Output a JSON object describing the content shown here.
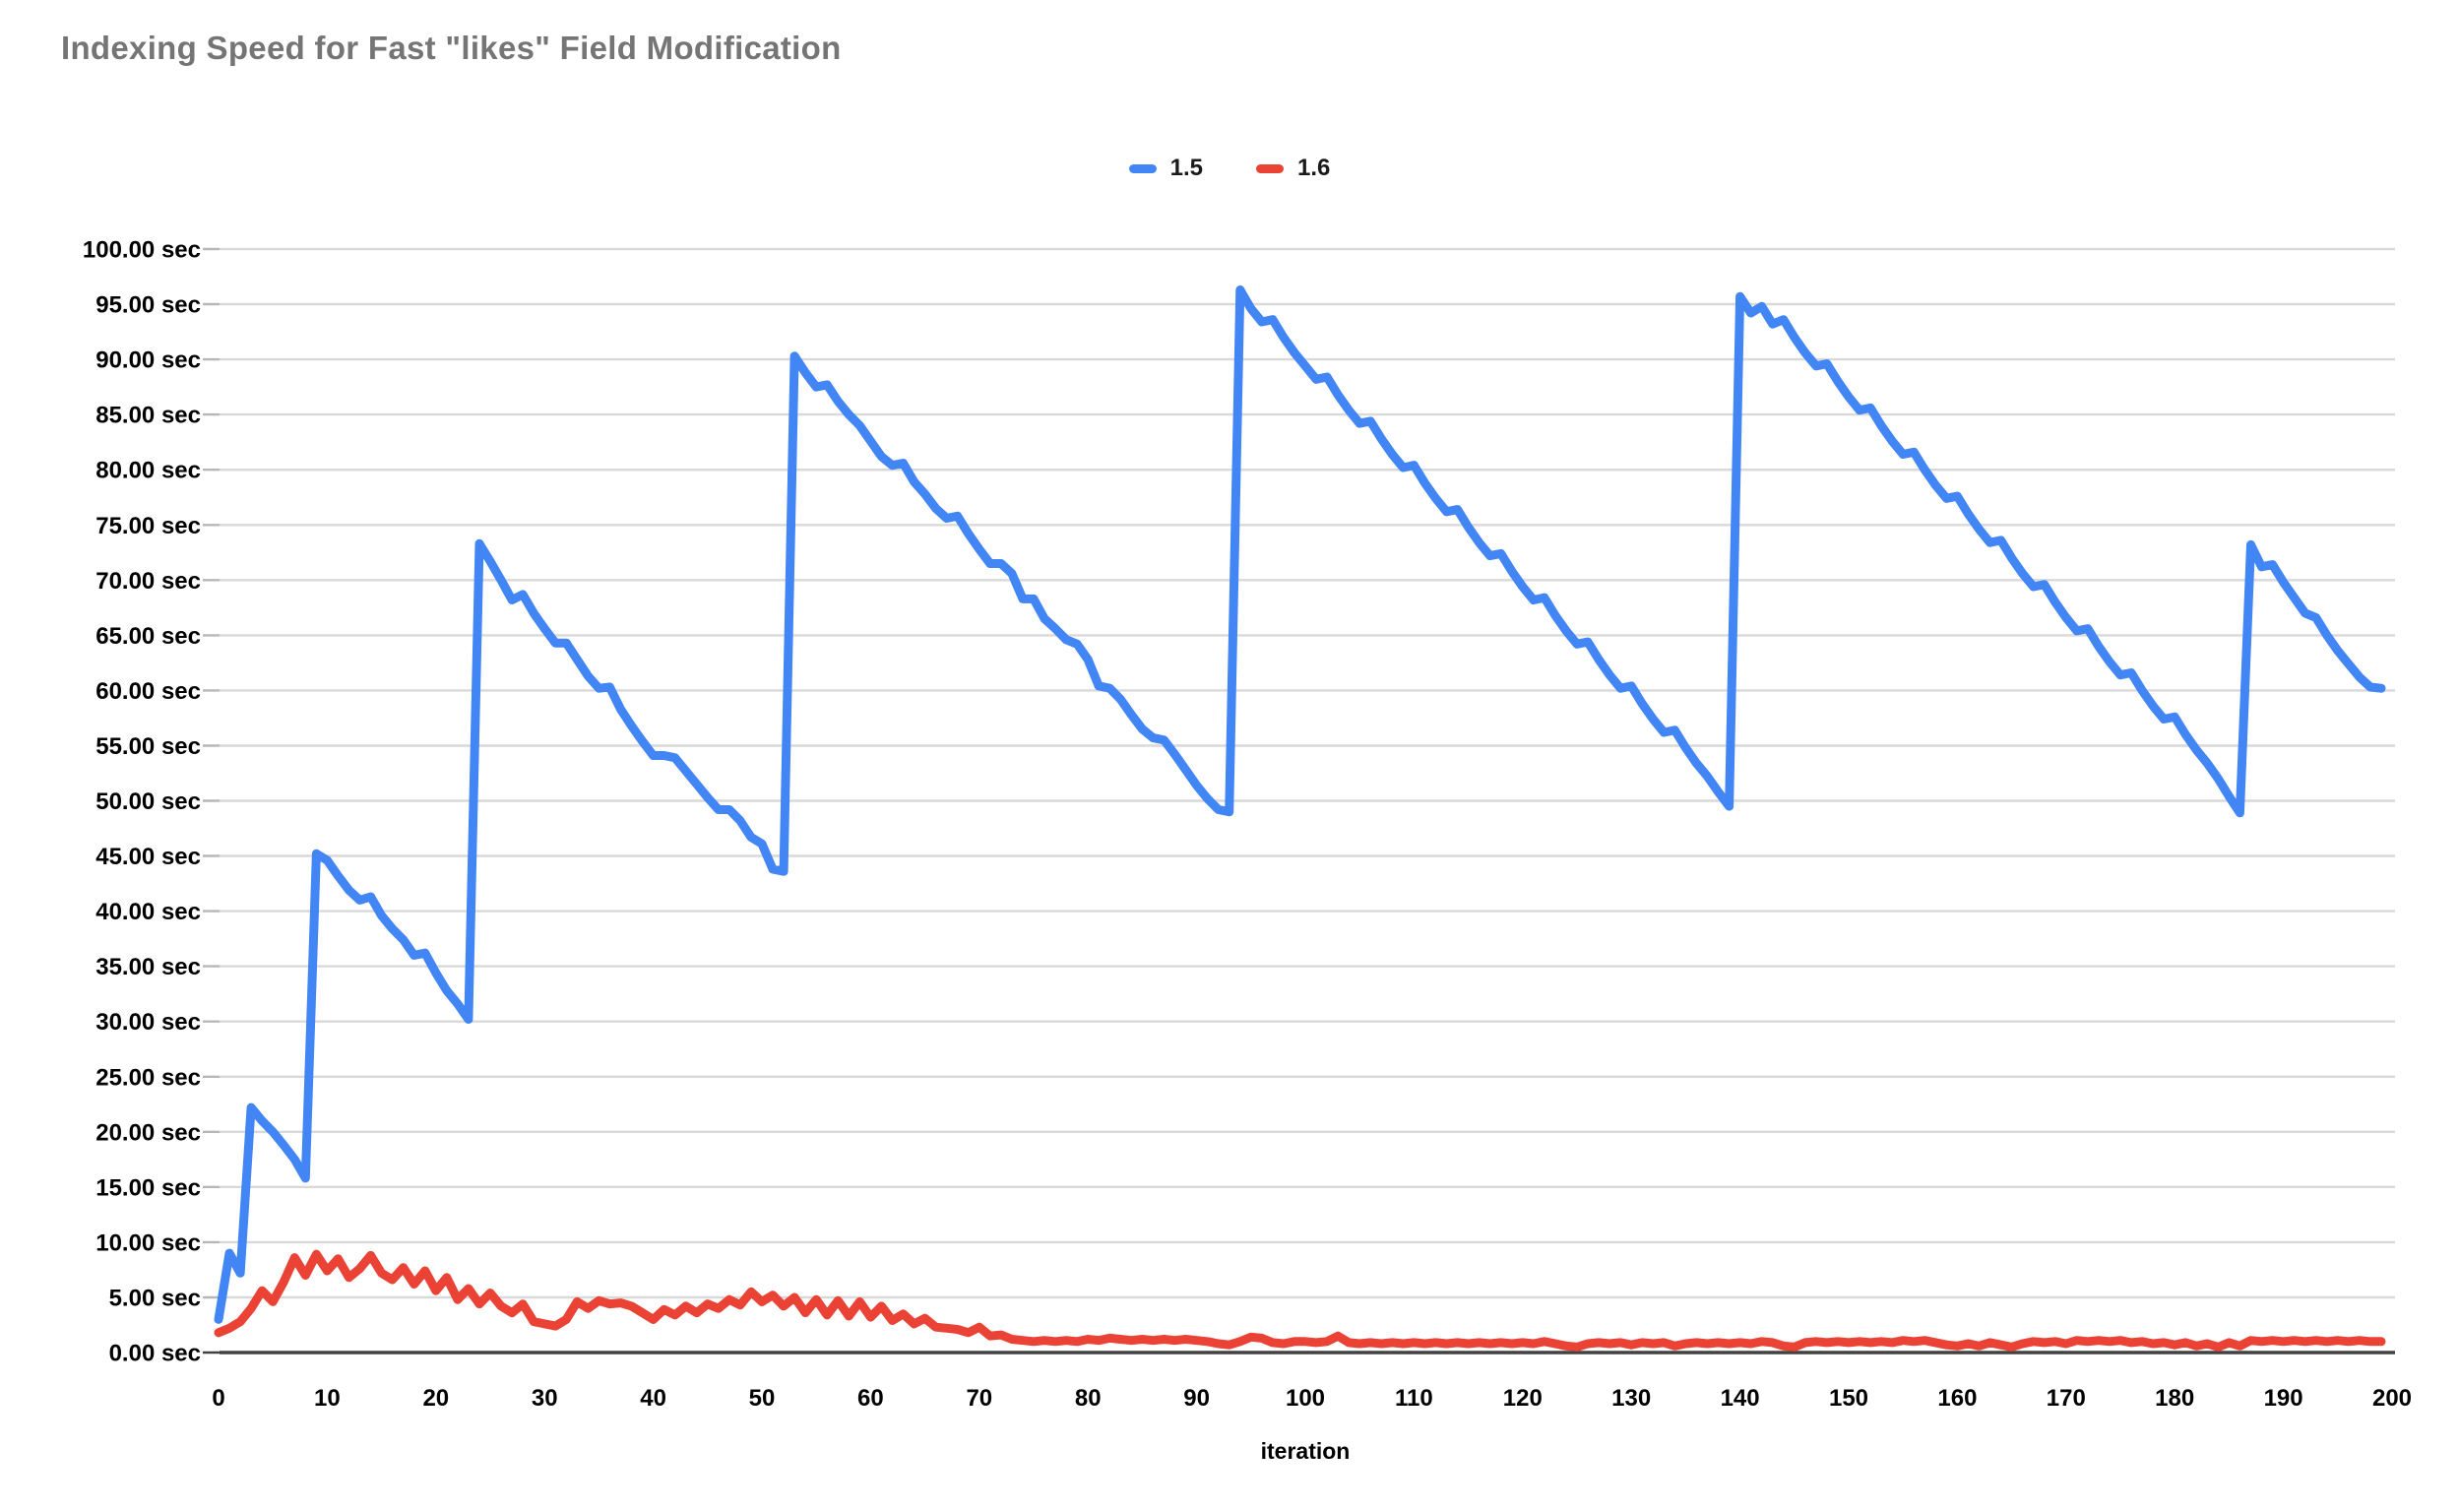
{
  "title": {
    "text": "Indexing Speed for Fast \"likes\" Field Modification",
    "color": "#757575"
  },
  "legend": {
    "position": "top",
    "items": [
      {
        "label": "1.5",
        "color": "#4285F4"
      },
      {
        "label": "1.6",
        "color": "#EA4335"
      }
    ]
  },
  "axes": {
    "x_title": "iteration",
    "y_unit": "sec"
  },
  "chart_data": {
    "type": "line",
    "title": "Indexing Speed for Fast \"likes\" Field Modification",
    "xlabel": "iteration",
    "ylabel": "",
    "xlim": [
      0,
      200
    ],
    "ylim": [
      0,
      100
    ],
    "grid": true,
    "legend_position": "top",
    "x_ticks": [
      0,
      10,
      20,
      30,
      40,
      50,
      60,
      70,
      80,
      90,
      100,
      110,
      120,
      130,
      140,
      150,
      160,
      170,
      180,
      190,
      200
    ],
    "x_tick_labels": [
      "0",
      "10",
      "20",
      "30",
      "40",
      "50",
      "60",
      "70",
      "80",
      "90",
      "100",
      "110",
      "120",
      "130",
      "140",
      "150",
      "160",
      "170",
      "180",
      "190",
      "200"
    ],
    "y_ticks": [
      0,
      5,
      10,
      15,
      20,
      25,
      30,
      35,
      40,
      45,
      50,
      55,
      60,
      65,
      70,
      75,
      80,
      85,
      90,
      95,
      100
    ],
    "y_tick_labels": [
      "0.00 sec",
      "5.00 sec",
      "10.00 sec",
      "15.00 sec",
      "20.00 sec",
      "25.00 sec",
      "30.00 sec",
      "35.00 sec",
      "40.00 sec",
      "45.00 sec",
      "50.00 sec",
      "55.00 sec",
      "60.00 sec",
      "65.00 sec",
      "70.00 sec",
      "75.00 sec",
      "80.00 sec",
      "85.00 sec",
      "90.00 sec",
      "95.00 sec",
      "100.00 sec"
    ],
    "x_start": 0,
    "x_step": 1,
    "series": [
      {
        "name": "1.5",
        "color": "#4285F4",
        "values": [
          3,
          9,
          7.2,
          22.2,
          21,
          20,
          18.8,
          17.5,
          15.8,
          45.2,
          44.6,
          43.2,
          41.9,
          41,
          41.3,
          39.6,
          38.4,
          37.4,
          36,
          36.2,
          34.4,
          32.8,
          31.6,
          30.2,
          73.3,
          71.7,
          70,
          68.2,
          68.7,
          67,
          65.6,
          64.3,
          64.3,
          62.8,
          61.3,
          60.2,
          60.3,
          58.3,
          56.8,
          55.4,
          54.1,
          54.1,
          53.9,
          52.7,
          51.5,
          50.3,
          49.2,
          49.2,
          48.2,
          46.7,
          46.1,
          43.8,
          43.6,
          90.3,
          88.8,
          87.5,
          87.7,
          86.2,
          85,
          84,
          82.6,
          81.2,
          80.4,
          80.6,
          78.9,
          77.8,
          76.5,
          75.6,
          75.8,
          74.2,
          72.8,
          71.5,
          71.5,
          70.6,
          68.3,
          68.3,
          66.5,
          65.6,
          64.6,
          64.2,
          62.8,
          60.4,
          60.2,
          59.2,
          57.8,
          56.5,
          55.7,
          55.5,
          54.2,
          52.8,
          51.4,
          50.2,
          49.2,
          49,
          96.3,
          94.6,
          93.4,
          93.6,
          92,
          90.6,
          89.4,
          88.2,
          88.4,
          86.8,
          85.4,
          84.2,
          84.4,
          82.8,
          81.4,
          80.2,
          80.4,
          78.8,
          77.4,
          76.2,
          76.4,
          74.8,
          73.4,
          72.2,
          72.4,
          70.8,
          69.4,
          68.2,
          68.4,
          66.8,
          65.4,
          64.2,
          64.4,
          62.8,
          61.4,
          60.2,
          60.4,
          58.8,
          57.4,
          56.2,
          56.4,
          54.8,
          53.4,
          52.2,
          50.8,
          49.5,
          95.7,
          94.2,
          94.8,
          93.2,
          93.6,
          92,
          90.6,
          89.4,
          89.6,
          88,
          86.6,
          85.4,
          85.6,
          84,
          82.6,
          81.4,
          81.6,
          80,
          78.6,
          77.4,
          77.6,
          76,
          74.6,
          73.4,
          73.6,
          72,
          70.6,
          69.4,
          69.6,
          68,
          66.6,
          65.4,
          65.6,
          64,
          62.6,
          61.4,
          61.6,
          60,
          58.6,
          57.4,
          57.6,
          56,
          54.6,
          53.4,
          52,
          50.4,
          48.9,
          73.2,
          71.2,
          71.4,
          69.8,
          68.4,
          67,
          66.6,
          65,
          63.6,
          62.4,
          61.2,
          60.3,
          60.2
        ]
      },
      {
        "name": "1.6",
        "color": "#EA4335",
        "values": [
          1.8,
          2.2,
          2.8,
          4,
          5.6,
          4.6,
          6.4,
          8.6,
          7,
          8.9,
          7.4,
          8.5,
          6.8,
          7.6,
          8.8,
          7.2,
          6.6,
          7.7,
          6.2,
          7.4,
          5.6,
          6.8,
          4.8,
          5.8,
          4.4,
          5.4,
          4.2,
          3.6,
          4.4,
          2.8,
          2.6,
          2.4,
          3,
          4.6,
          4,
          4.7,
          4.4,
          4.5,
          4.2,
          3.6,
          3,
          3.9,
          3.4,
          4.2,
          3.6,
          4.4,
          4,
          4.8,
          4.3,
          5.5,
          4.6,
          5.2,
          4.2,
          5,
          3.6,
          4.8,
          3.4,
          4.7,
          3.3,
          4.6,
          3.2,
          4.2,
          2.9,
          3.5,
          2.6,
          3.1,
          2.3,
          2.2,
          2.1,
          1.8,
          2.3,
          1.5,
          1.6,
          1.2,
          1.1,
          1,
          1.1,
          1,
          1.1,
          1,
          1.2,
          1.1,
          1.3,
          1.2,
          1.1,
          1.2,
          1.1,
          1.2,
          1.1,
          1.2,
          1.1,
          1,
          0.8,
          0.7,
          1,
          1.4,
          1.3,
          0.9,
          0.8,
          1,
          1,
          0.9,
          1,
          1.5,
          0.9,
          0.8,
          0.9,
          0.8,
          0.9,
          0.8,
          0.9,
          0.8,
          0.9,
          0.8,
          0.9,
          0.8,
          0.9,
          0.8,
          0.9,
          0.8,
          0.9,
          0.8,
          1,
          0.8,
          0.6,
          0.5,
          0.8,
          0.9,
          0.8,
          0.9,
          0.7,
          0.9,
          0.8,
          0.9,
          0.6,
          0.8,
          0.9,
          0.8,
          0.9,
          0.8,
          0.9,
          0.8,
          1,
          0.9,
          0.6,
          0.5,
          0.9,
          1,
          0.9,
          1,
          0.9,
          1,
          0.9,
          1,
          0.9,
          1.1,
          1,
          1.1,
          0.9,
          0.7,
          0.6,
          0.8,
          0.6,
          0.9,
          0.7,
          0.5,
          0.8,
          1,
          0.9,
          1,
          0.8,
          1.1,
          1,
          1.1,
          1,
          1.1,
          0.9,
          1,
          0.8,
          0.9,
          0.7,
          0.9,
          0.6,
          0.8,
          0.5,
          0.9,
          0.6,
          1.1,
          1,
          1.1,
          1,
          1.1,
          1,
          1.1,
          1,
          1.1,
          1,
          1.1,
          1,
          1
        ]
      }
    ]
  },
  "colors": {
    "gridline": "#d9d9d9",
    "tick": "#b7b7b7",
    "axis": "#424242",
    "tick_label": "#000000"
  }
}
